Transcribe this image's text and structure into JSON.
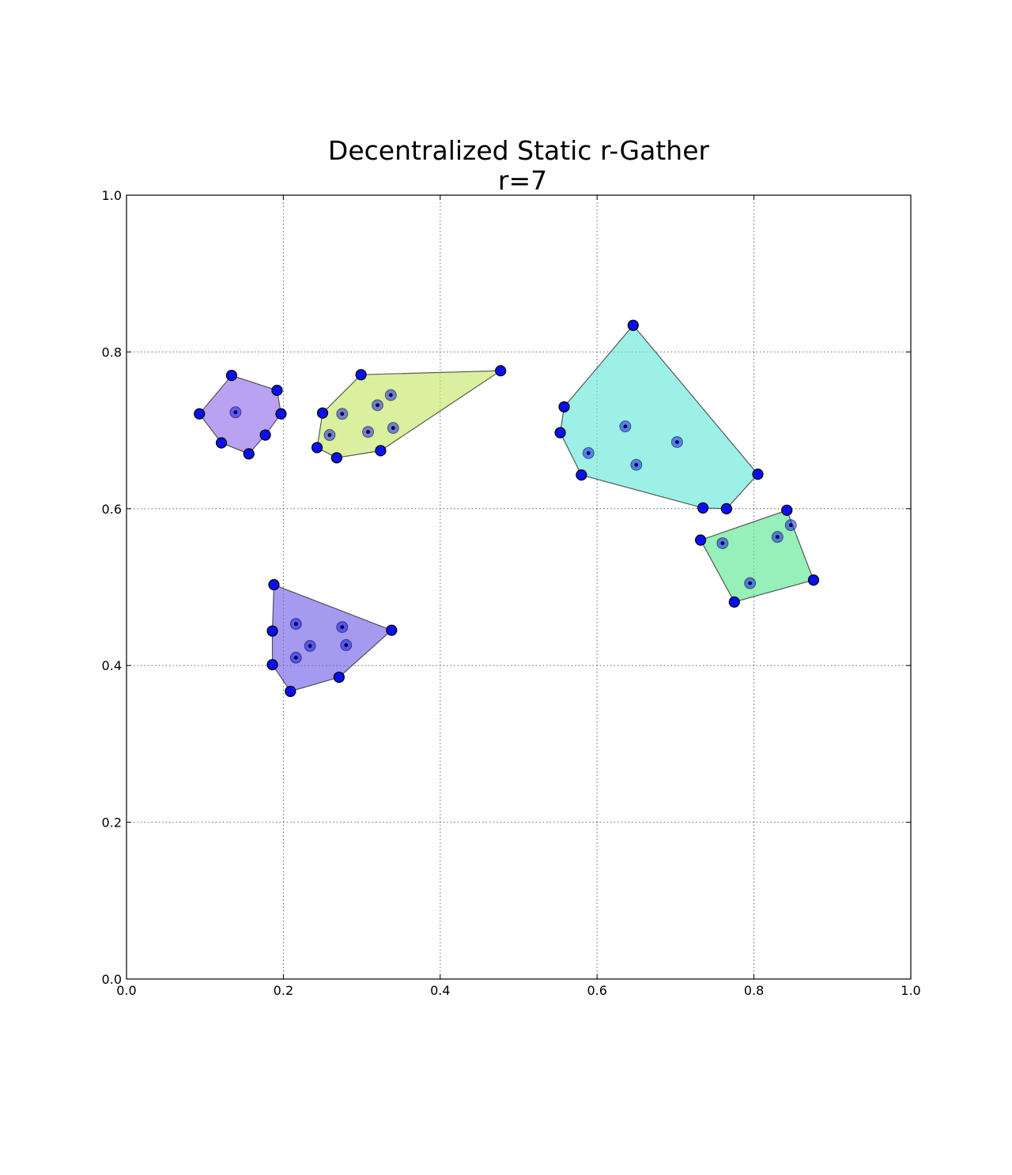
{
  "chart_data": {
    "type": "scatter",
    "title": "Decentralized Static r-Gather",
    "subtitle": "r=7",
    "xlabel": "",
    "ylabel": "",
    "xlim": [
      0.0,
      1.0
    ],
    "ylim": [
      0.0,
      1.0
    ],
    "grid": true,
    "xticks": [
      "0.0",
      "0.2",
      "0.4",
      "0.6",
      "0.8",
      "1.0"
    ],
    "yticks": [
      "0.0",
      "0.2",
      "0.4",
      "0.6",
      "0.8",
      "1.0"
    ],
    "xtick_values": [
      0.0,
      0.2,
      0.4,
      0.6,
      0.8,
      1.0
    ],
    "ytick_values": [
      0.0,
      0.2,
      0.4,
      0.6,
      0.8,
      1.0
    ],
    "clusters": [
      {
        "color": "#9370eb",
        "hull": [
          [
            0.134,
            0.77
          ],
          [
            0.192,
            0.751
          ],
          [
            0.197,
            0.721
          ],
          [
            0.177,
            0.694
          ],
          [
            0.156,
            0.67
          ],
          [
            0.121,
            0.684
          ],
          [
            0.093,
            0.721
          ]
        ],
        "interior": [
          [
            0.139,
            0.723
          ]
        ]
      },
      {
        "color": "#c6e86a",
        "hull": [
          [
            0.299,
            0.771
          ],
          [
            0.477,
            0.776
          ],
          [
            0.324,
            0.674
          ],
          [
            0.268,
            0.665
          ],
          [
            0.243,
            0.678
          ],
          [
            0.25,
            0.722
          ]
        ],
        "interior": [
          [
            0.275,
            0.721
          ],
          [
            0.337,
            0.745
          ],
          [
            0.32,
            0.732
          ],
          [
            0.259,
            0.694
          ],
          [
            0.308,
            0.698
          ],
          [
            0.34,
            0.703
          ]
        ]
      },
      {
        "color": "#67e8d8",
        "hull": [
          [
            0.646,
            0.834
          ],
          [
            0.805,
            0.644
          ],
          [
            0.765,
            0.6
          ],
          [
            0.735,
            0.601
          ],
          [
            0.58,
            0.643
          ],
          [
            0.553,
            0.697
          ],
          [
            0.558,
            0.73
          ]
        ],
        "interior": [
          [
            0.636,
            0.705
          ],
          [
            0.589,
            0.671
          ],
          [
            0.65,
            0.656
          ],
          [
            0.702,
            0.685
          ]
        ]
      },
      {
        "color": "#5fe694",
        "hull": [
          [
            0.842,
            0.598
          ],
          [
            0.876,
            0.509
          ],
          [
            0.775,
            0.481
          ],
          [
            0.732,
            0.56
          ]
        ],
        "interior": [
          [
            0.76,
            0.556
          ],
          [
            0.83,
            0.564
          ],
          [
            0.847,
            0.579
          ],
          [
            0.795,
            0.505
          ]
        ]
      },
      {
        "color": "#7564e8",
        "hull": [
          [
            0.188,
            0.503
          ],
          [
            0.338,
            0.445
          ],
          [
            0.271,
            0.385
          ],
          [
            0.209,
            0.367
          ],
          [
            0.186,
            0.401
          ],
          [
            0.186,
            0.444
          ]
        ],
        "interior": [
          [
            0.216,
            0.453
          ],
          [
            0.275,
            0.449
          ],
          [
            0.234,
            0.425
          ],
          [
            0.28,
            0.426
          ],
          [
            0.216,
            0.41
          ]
        ]
      }
    ]
  }
}
